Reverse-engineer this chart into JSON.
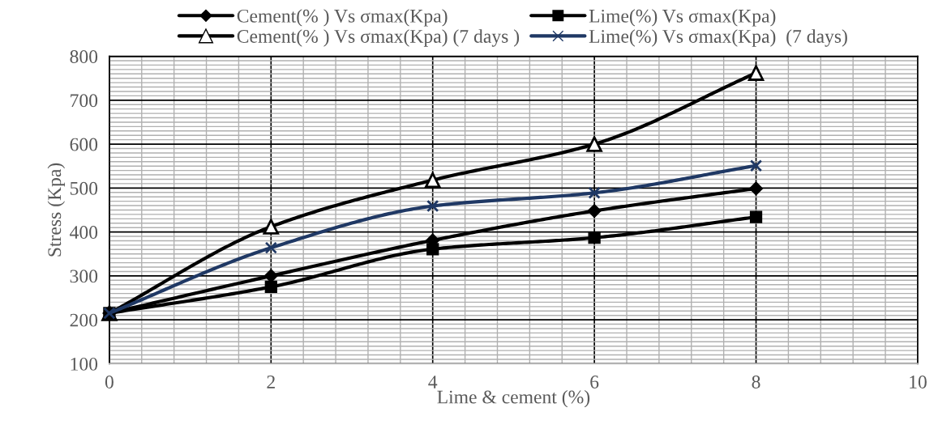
{
  "chart_data": {
    "type": "line",
    "xlabel": "Lime & cement (%)",
    "ylabel": "Stress (Kpa)",
    "x": [
      0,
      2,
      4,
      6,
      8
    ],
    "series": [
      {
        "name": "Cement(% ) Vs σmax(Kpa)",
        "color": "#000000",
        "marker": "diamond",
        "values": [
          215,
          300,
          381,
          448,
          499
        ]
      },
      {
        "name": "Lime(%) Vs σmax(Kpa)",
        "color": "#000000",
        "marker": "square",
        "values": [
          215,
          275,
          361,
          387,
          434
        ]
      },
      {
        "name": "Cement(% ) Vs σmax(Kpa) (7 days )",
        "color": "#000000",
        "marker": "triangle",
        "values": [
          215,
          412,
          518,
          600,
          762
        ]
      },
      {
        "name": "Lime(%) Vs σmax(Kpa)  (7 days)",
        "color": "#1f3864",
        "marker": "cross",
        "values": [
          215,
          364,
          459,
          489,
          551
        ]
      }
    ],
    "xlim": [
      0,
      10
    ],
    "xticks": [
      0,
      2,
      4,
      6,
      8,
      10
    ],
    "ylim": [
      100,
      800
    ],
    "yticks": [
      100,
      200,
      300,
      400,
      500,
      600,
      700,
      800
    ],
    "grid": true,
    "legend": "top",
    "line_style": "solid"
  }
}
